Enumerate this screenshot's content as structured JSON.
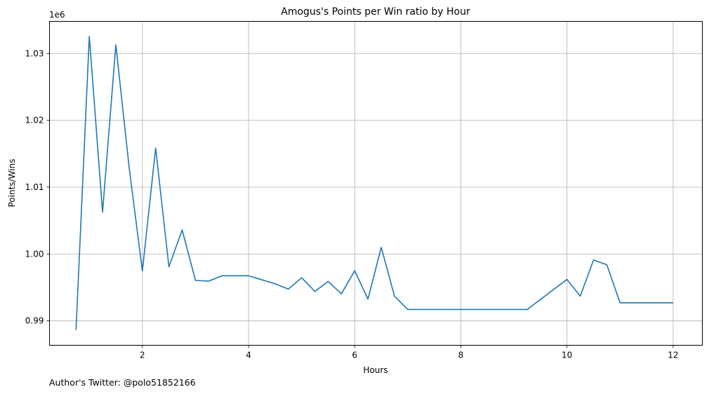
{
  "chart_data": {
    "type": "line",
    "title": "Amogus's Points per Win ratio by Hour",
    "xlabel": "Hours",
    "ylabel": "Points/Wins",
    "y_offset_label": "1e6",
    "footer": "Author's Twitter: @polo51852166",
    "grid": true,
    "xlim": [
      0.25,
      12.55
    ],
    "ylim": [
      0.98635,
      1.0348
    ],
    "x_ticks": [
      2,
      4,
      6,
      8,
      10,
      12
    ],
    "x_tick_labels": [
      "2",
      "4",
      "6",
      "8",
      "10",
      "12"
    ],
    "y_ticks": [
      0.99,
      1.0,
      1.01,
      1.02,
      1.03
    ],
    "y_tick_labels": [
      "0.99",
      "1.00",
      "1.01",
      "1.02",
      "1.03"
    ],
    "line_color": "#1f77b4",
    "series": [
      {
        "x": [
          0.75,
          1.0,
          1.25,
          1.5,
          1.75,
          2.0,
          2.25,
          2.5,
          2.75,
          3.0,
          3.25,
          3.5,
          3.75,
          4.0,
          4.25,
          4.5,
          4.75,
          5.0,
          5.25,
          5.5,
          5.75,
          6.0,
          6.25,
          6.5,
          6.75,
          7.0,
          7.25,
          7.5,
          7.75,
          8.0,
          8.25,
          8.5,
          8.75,
          9.0,
          9.25,
          9.5,
          9.75,
          10.0,
          10.25,
          10.5,
          10.75,
          11.0,
          11.25,
          11.5,
          11.75,
          12.0
        ],
        "y": [
          0.98865,
          1.03255,
          1.00625,
          1.0313,
          1.013,
          0.99745,
          1.01585,
          0.9981,
          1.0036,
          0.99605,
          0.99595,
          0.99675,
          0.99675,
          0.99675,
          0.99615,
          0.99555,
          0.99475,
          0.99645,
          0.9944,
          0.9959,
          0.99405,
          0.9975,
          0.99325,
          1.001,
          0.9937,
          0.9917,
          0.9917,
          0.9917,
          0.9917,
          0.9917,
          0.9917,
          0.9917,
          0.9917,
          0.9917,
          0.9917,
          0.9932,
          0.9947,
          0.9962,
          0.9937,
          0.9991,
          0.9984,
          0.9927,
          0.9927,
          0.9927,
          0.9927,
          0.9927
        ]
      }
    ]
  }
}
